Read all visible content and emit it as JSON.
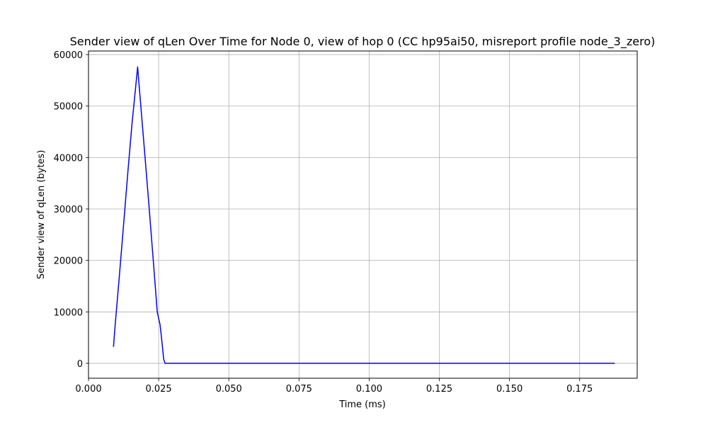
{
  "chart_data": {
    "type": "line",
    "title": "Sender view of qLen Over Time for Node 0, view of hop 0 (CC hp95ai50, misreport profile node_3_zero)",
    "xlabel": "Time (ms)",
    "ylabel": "Sender view of qLen (bytes)",
    "xlim": [
      0.0,
      0.1955
    ],
    "ylim": [
      -2900,
      60700
    ],
    "xticks": [
      0.0,
      0.025,
      0.05,
      0.075,
      0.1,
      0.125,
      0.15,
      0.175
    ],
    "xtick_labels": [
      "0.000",
      "0.025",
      "0.050",
      "0.075",
      "0.100",
      "0.125",
      "0.150",
      "0.175"
    ],
    "yticks": [
      0,
      10000,
      20000,
      30000,
      40000,
      50000,
      60000
    ],
    "ytick_labels": [
      "0",
      "10000",
      "20000",
      "30000",
      "40000",
      "50000",
      "60000"
    ],
    "grid": true,
    "series": [
      {
        "color": "#0000ff",
        "x": [
          0.0089,
          0.0095,
          0.011,
          0.0125,
          0.014,
          0.0155,
          0.0165,
          0.0175,
          0.0185,
          0.02,
          0.0215,
          0.023,
          0.0245,
          0.0255,
          0.0262,
          0.0268,
          0.0273,
          0.0278,
          0.029,
          0.05,
          0.1,
          0.15,
          0.1875
        ],
        "y": [
          3200,
          7500,
          17000,
          27000,
          37000,
          46500,
          52000,
          57600,
          51000,
          41000,
          31000,
          20500,
          10000,
          7500,
          4000,
          800,
          0,
          0,
          0,
          0,
          0,
          0,
          0
        ]
      }
    ]
  }
}
